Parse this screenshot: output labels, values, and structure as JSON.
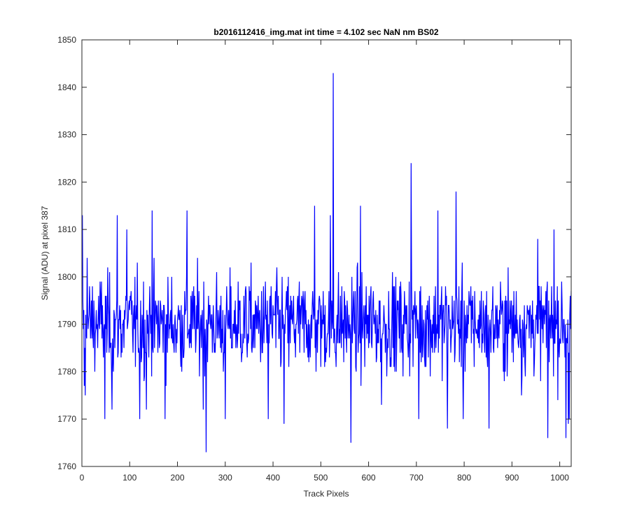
{
  "chart_data": {
    "type": "line",
    "title": "b2016112416_img.mat int time = 4.102 sec  NaN nm BS02",
    "xlabel": "Track Pixels",
    "ylabel": "Signal (ADU) at pixel 387",
    "xlim": [
      0,
      1024
    ],
    "ylim": [
      1760,
      1850
    ],
    "xticks": [
      0,
      100,
      200,
      300,
      400,
      500,
      600,
      700,
      800,
      900,
      1000
    ],
    "yticks": [
      1760,
      1770,
      1780,
      1790,
      1800,
      1810,
      1820,
      1830,
      1840,
      1850
    ],
    "grid": false,
    "line_color": "#0000ff",
    "series": [
      {
        "description_note": "",
        "x_start": 1,
        "x_step": 1,
        "values_generator": "noise",
        "base": 1790,
        "noise_sd": 7,
        "spikes": [
          {
            "x": 1,
            "y": 1813
          },
          {
            "x": 5,
            "y": 1777
          },
          {
            "x": 7,
            "y": 1775
          },
          {
            "x": 11,
            "y": 1804
          },
          {
            "x": 48,
            "y": 1770
          },
          {
            "x": 63,
            "y": 1772
          },
          {
            "x": 74,
            "y": 1813
          },
          {
            "x": 94,
            "y": 1810
          },
          {
            "x": 121,
            "y": 1770
          },
          {
            "x": 135,
            "y": 1772
          },
          {
            "x": 147,
            "y": 1814
          },
          {
            "x": 174,
            "y": 1770
          },
          {
            "x": 220,
            "y": 1814
          },
          {
            "x": 254,
            "y": 1772
          },
          {
            "x": 260,
            "y": 1763
          },
          {
            "x": 300,
            "y": 1770
          },
          {
            "x": 350,
            "y": 1798
          },
          {
            "x": 390,
            "y": 1770
          },
          {
            "x": 423,
            "y": 1769
          },
          {
            "x": 487,
            "y": 1815
          },
          {
            "x": 520,
            "y": 1813
          },
          {
            "x": 526,
            "y": 1843
          },
          {
            "x": 563,
            "y": 1765
          },
          {
            "x": 583,
            "y": 1815
          },
          {
            "x": 627,
            "y": 1773
          },
          {
            "x": 689,
            "y": 1824
          },
          {
            "x": 705,
            "y": 1770
          },
          {
            "x": 745,
            "y": 1814
          },
          {
            "x": 765,
            "y": 1768
          },
          {
            "x": 783,
            "y": 1818
          },
          {
            "x": 798,
            "y": 1770
          },
          {
            "x": 852,
            "y": 1768
          },
          {
            "x": 920,
            "y": 1775
          },
          {
            "x": 954,
            "y": 1808
          },
          {
            "x": 975,
            "y": 1766
          },
          {
            "x": 988,
            "y": 1810
          },
          {
            "x": 1013,
            "y": 1766
          },
          {
            "x": 1018,
            "y": 1769
          },
          {
            "x": 1020,
            "y": 1770
          }
        ]
      }
    ]
  }
}
